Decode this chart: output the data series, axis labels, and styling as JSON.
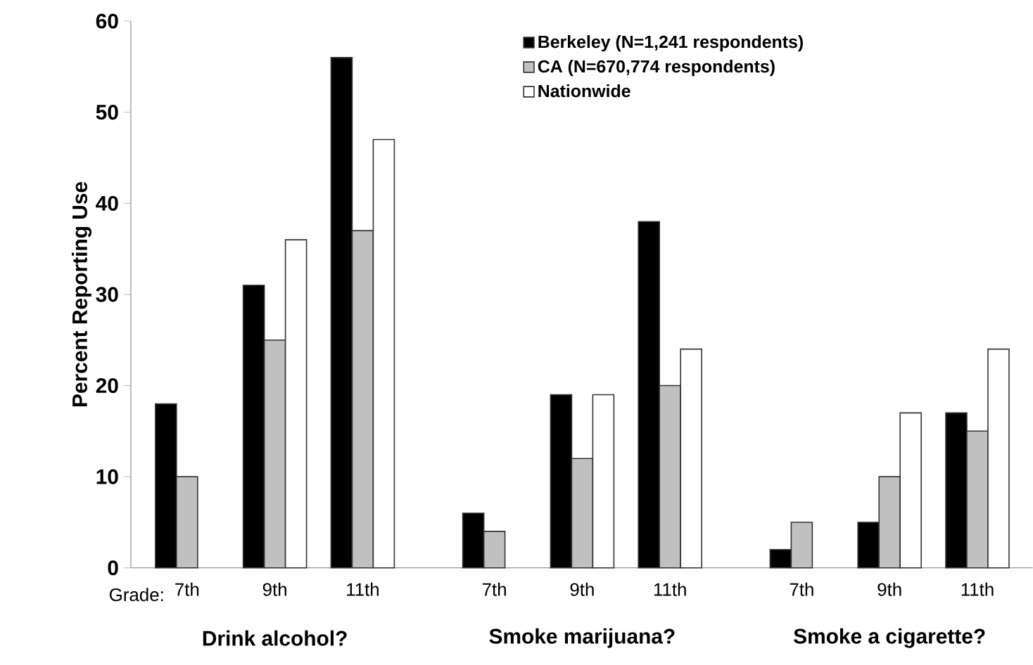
{
  "chart_data": {
    "type": "bar",
    "ylabel": "Percent Reporting Use",
    "categories": [
      "7th",
      "9th",
      "11th",
      "7th",
      "9th",
      "11th",
      "7th",
      "9th",
      "11th"
    ],
    "series": [
      {
        "name": "Berkeley (N=1,241 respondents)",
        "color": "#000000",
        "values": [
          18,
          31,
          56,
          6,
          19,
          38,
          2,
          5,
          17
        ]
      },
      {
        "name": "CA  (N=670,774 respondents)",
        "color": "#c0c0c0",
        "values": [
          10,
          25,
          37,
          4,
          12,
          20,
          5,
          10,
          15
        ]
      },
      {
        "name": "Nationwide",
        "color": "#ffffff",
        "values": [
          null,
          36,
          47,
          null,
          19,
          24,
          null,
          17,
          24
        ]
      }
    ],
    "ylim": [
      0,
      60
    ],
    "yticks": [
      0,
      10,
      20,
      30,
      40,
      50,
      60
    ],
    "grid": false,
    "legend": "top right",
    "annotations": [
      "Grade:",
      "Drink alcohol?",
      "Smoke marijuana?",
      "Smoke a cigarette?"
    ]
  }
}
